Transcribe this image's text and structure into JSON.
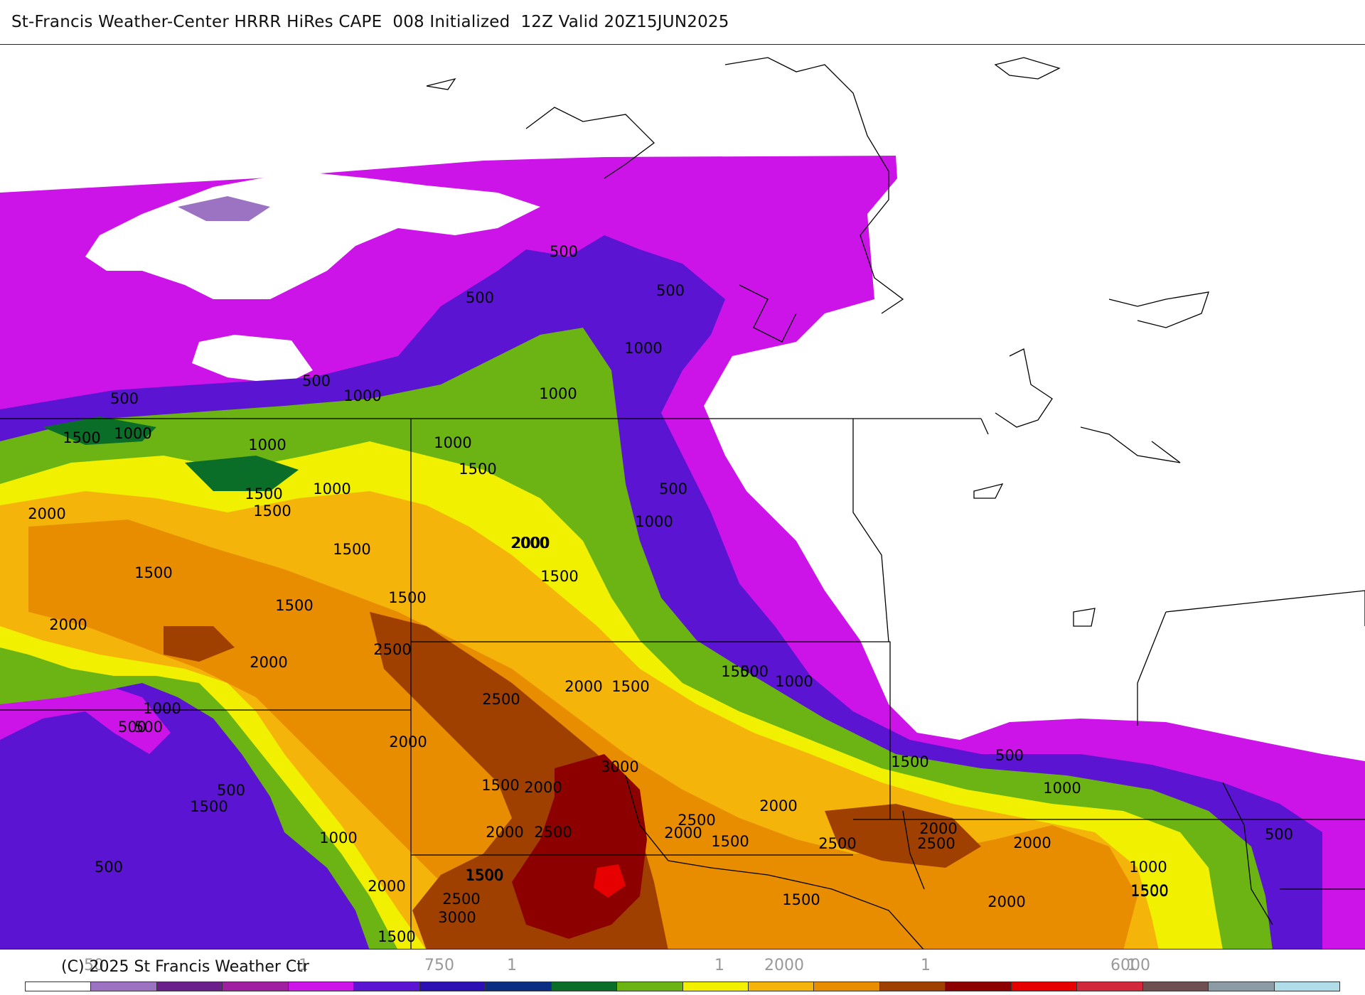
{
  "header": {
    "title": "St-Francis Weather-Center HRRR HiRes CAPE  008 Initialized  12Z Valid 20Z15JUN2025"
  },
  "footer": {
    "copyright": "(C) 2025 St Francis Weather Ctr"
  },
  "colorbar": {
    "colors": [
      "#ffffff",
      "#9b73c2",
      "#6a1f8c",
      "#a01ea0",
      "#cc14e8",
      "#5a14d2",
      "#2c10b4",
      "#0a2c82",
      "#0a6e28",
      "#6cb414",
      "#f0f000",
      "#f5b40a",
      "#e88c00",
      "#a04000",
      "#8c0000",
      "#e60000",
      "#d2283c",
      "#6e5050",
      "#8c9ca6",
      "#b0dde8"
    ],
    "tick_labels": [
      {
        "text": "50"
      },
      {
        "text": "1"
      },
      {
        "text": "750"
      },
      {
        "text": "1"
      },
      {
        "text": "1"
      },
      {
        "text": "2000"
      },
      {
        "text": "1"
      },
      {
        "text": "6000"
      },
      {
        "text": "1"
      }
    ]
  },
  "map": {
    "contour_labels": [
      "500",
      "500",
      "500",
      "500",
      "500",
      "1000",
      "1000",
      "1000",
      "1500",
      "1000",
      "1000",
      "1000",
      "1500",
      "1500",
      "1500",
      "1000",
      "500",
      "1000",
      "2000",
      "1500",
      "1500",
      "2000",
      "1500",
      "1500",
      "2000",
      "1500",
      "2000",
      "2500",
      "2000",
      "2500",
      "2000",
      "1500",
      "500",
      "1000",
      "1000",
      "500",
      "2000",
      "500",
      "1500",
      "3000",
      "1500",
      "2000",
      "1500",
      "2000",
      "2000",
      "2500",
      "2000",
      "2500",
      "2500",
      "1500",
      "2500",
      "2000",
      "2000",
      "1500",
      "500",
      "1000",
      "500",
      "500",
      "1000",
      "1500",
      "2000",
      "1500",
      "2500",
      "3000",
      "1500",
      "1500",
      "2000",
      "1500",
      "1000",
      "500",
      "1500"
    ]
  }
}
